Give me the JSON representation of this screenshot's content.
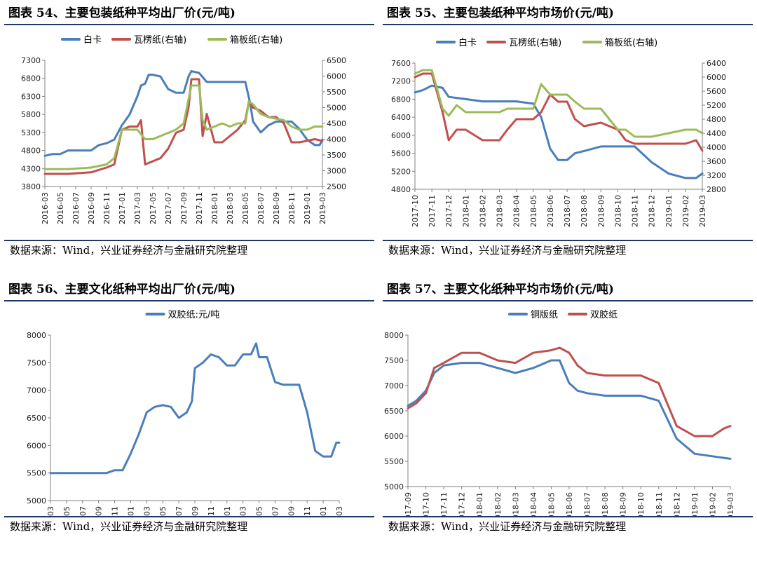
{
  "colors": {
    "blue": "#4a7ebb",
    "red": "#c0504d",
    "green": "#9bbb59",
    "rule": "#1f3864"
  },
  "chart_data": [
    {
      "type": "line",
      "panel_title": "图表 54、主要包装纸种平均出厂价(元/吨)",
      "source": "数据来源：Wind，兴业证券经济与金融研究院整理",
      "legend_position": "top",
      "grid": false,
      "ylim": [
        3800,
        7300
      ],
      "yticks": [
        3800,
        4300,
        4800,
        5300,
        5800,
        6300,
        6800,
        7300
      ],
      "y2lim": [
        2500,
        6500
      ],
      "y2ticks": [
        2500,
        3000,
        3500,
        4000,
        4500,
        5000,
        5500,
        6000,
        6500
      ],
      "xlim": [
        "2016-03",
        "2019-03"
      ],
      "xticks": [
        "2016-03",
        "2016-05",
        "2016-07",
        "2016-09",
        "2016-11",
        "2017-01",
        "2017-03",
        "2017-05",
        "2017-07",
        "2017-09",
        "2017-11",
        "2018-01",
        "2018-03",
        "2018-05",
        "2018-07",
        "2018-09",
        "2018-11",
        "2019-01",
        "2019-03"
      ],
      "series": [
        {
          "name": "白卡",
          "axis": "left",
          "color": "#4a7ebb",
          "x": [
            "2016-03",
            "2016-04",
            "2016-05",
            "2016-06",
            "2016-08",
            "2016-09",
            "2016-10",
            "2016-11",
            "2016-12",
            "2017-01",
            "2017-02",
            "2017-03",
            "2017-03-15",
            "2017-04",
            "2017-04-15",
            "2017-05",
            "2017-06",
            "2017-07",
            "2017-08",
            "2017-09",
            "2017-09-20",
            "2017-10",
            "2017-11",
            "2017-12",
            "2018-01",
            "2018-02",
            "2018-03",
            "2018-04",
            "2018-05",
            "2018-05-20",
            "2018-06",
            "2018-07",
            "2018-08",
            "2018-09",
            "2018-10",
            "2018-11",
            "2018-12",
            "2019-01",
            "2019-02",
            "2019-02-20",
            "2019-03"
          ],
          "values": [
            4650,
            4700,
            4700,
            4800,
            4800,
            4800,
            4950,
            5000,
            5100,
            5500,
            5800,
            6300,
            6600,
            6650,
            6900,
            6900,
            6850,
            6500,
            6400,
            6400,
            6850,
            7000,
            6950,
            6700,
            6700,
            6700,
            6700,
            6700,
            6700,
            6100,
            5600,
            5300,
            5500,
            5600,
            5600,
            5600,
            5400,
            5100,
            4950,
            4950,
            5100
          ]
        },
        {
          "name": "瓦楞纸(右轴)",
          "axis": "right",
          "color": "#c0504d",
          "x": [
            "2016-03",
            "2016-06",
            "2016-09",
            "2016-11",
            "2016-12",
            "2017-01",
            "2017-02",
            "2017-03",
            "2017-03-15",
            "2017-04",
            "2017-05",
            "2017-06",
            "2017-07",
            "2017-08",
            "2017-09",
            "2017-09-20",
            "2017-10",
            "2017-11",
            "2017-11-15",
            "2017-12",
            "2018-01",
            "2018-02",
            "2018-03",
            "2018-04",
            "2018-05",
            "2018-05-15",
            "2018-06",
            "2018-07",
            "2018-08",
            "2018-09",
            "2018-10",
            "2018-11",
            "2018-12",
            "2019-01",
            "2019-02",
            "2019-03"
          ],
          "values": [
            2900,
            2900,
            2950,
            3100,
            3200,
            4300,
            4400,
            4400,
            4600,
            3200,
            3300,
            3400,
            3700,
            4200,
            4300,
            5000,
            5900,
            5900,
            4100,
            4800,
            3900,
            3900,
            4100,
            4300,
            4600,
            5200,
            5000,
            4900,
            4700,
            4700,
            4500,
            3900,
            3900,
            3950,
            4000,
            3950
          ]
        },
        {
          "name": "箱板纸(右轴)",
          "axis": "right",
          "color": "#9bbb59",
          "x": [
            "2016-03",
            "2016-06",
            "2016-09",
            "2016-11",
            "2016-12",
            "2017-01",
            "2017-02",
            "2017-03",
            "2017-04",
            "2017-05",
            "2017-06",
            "2017-07",
            "2017-08",
            "2017-09",
            "2017-10",
            "2017-11",
            "2017-11-15",
            "2017-12",
            "2018-01",
            "2018-02",
            "2018-03",
            "2018-04",
            "2018-05",
            "2018-05-15",
            "2018-06",
            "2018-07",
            "2018-08",
            "2018-09",
            "2018-10",
            "2018-11",
            "2018-12",
            "2019-01",
            "2019-02",
            "2019-03"
          ],
          "values": [
            3050,
            3050,
            3100,
            3200,
            3400,
            4300,
            4300,
            4300,
            4000,
            4000,
            4100,
            4200,
            4300,
            4500,
            5700,
            5700,
            4600,
            4300,
            4400,
            4500,
            4400,
            4500,
            4500,
            5200,
            5100,
            4800,
            4700,
            4650,
            4600,
            4400,
            4300,
            4300,
            4400,
            4400
          ]
        }
      ]
    },
    {
      "type": "line",
      "panel_title": "图表 55、主要包装纸种平均市场价(元/吨)",
      "source": "数据来源：Wind，兴业证券经济与金融研究院整理",
      "legend_position": "top",
      "grid": false,
      "ylim": [
        4800,
        7600
      ],
      "yticks": [
        4800,
        5200,
        5600,
        6000,
        6400,
        6800,
        7200,
        7600
      ],
      "y2lim": [
        2800,
        6400
      ],
      "y2ticks": [
        2800,
        3200,
        3600,
        4000,
        4400,
        4800,
        5200,
        5600,
        6000,
        6400
      ],
      "xlim": [
        "2017-10",
        "2019-03"
      ],
      "xticks": [
        "2017-10",
        "2017-11",
        "2017-12",
        "2018-01",
        "2018-02",
        "2018-03",
        "2018-04",
        "2018-05",
        "2018-06",
        "2018-07",
        "2018-08",
        "2018-09",
        "2018-10",
        "2018-11",
        "2018-12",
        "2019-01",
        "2019-02",
        "2019-03"
      ],
      "series": [
        {
          "name": "白卡",
          "axis": "left",
          "color": "#4a7ebb",
          "x": [
            "2017-10",
            "2017-10-15",
            "2017-11",
            "2017-11-20",
            "2017-12",
            "2018-01",
            "2018-02",
            "2018-03",
            "2018-04",
            "2018-05",
            "2018-05-15",
            "2018-06",
            "2018-06-15",
            "2018-07",
            "2018-07-15",
            "2018-08",
            "2018-09",
            "2018-10",
            "2018-11",
            "2018-12",
            "2019-01",
            "2019-02",
            "2019-02-20",
            "2019-03"
          ],
          "values": [
            6950,
            7000,
            7100,
            7050,
            6850,
            6800,
            6750,
            6750,
            6750,
            6700,
            6400,
            5700,
            5450,
            5450,
            5600,
            5650,
            5750,
            5750,
            5750,
            5400,
            5150,
            5050,
            5050,
            5150
          ]
        },
        {
          "name": "瓦楞纸(右轴)",
          "axis": "right",
          "color": "#c0504d",
          "x": [
            "2017-10",
            "2017-10-15",
            "2017-11",
            "2017-11-20",
            "2017-12",
            "2017-12-15",
            "2018-01",
            "2018-02",
            "2018-03",
            "2018-03-15",
            "2018-04",
            "2018-05",
            "2018-05-15",
            "2018-06",
            "2018-06-15",
            "2018-07",
            "2018-07-15",
            "2018-08",
            "2018-09",
            "2018-10",
            "2018-10-15",
            "2018-11",
            "2018-12",
            "2019-01",
            "2019-02",
            "2019-02-20",
            "2019-03"
          ],
          "values": [
            6000,
            6100,
            6100,
            5000,
            4200,
            4500,
            4500,
            4200,
            4200,
            4500,
            4800,
            4800,
            5000,
            5500,
            5300,
            5300,
            4800,
            4600,
            4700,
            4500,
            4200,
            4100,
            4100,
            4100,
            4100,
            4200,
            3900
          ]
        },
        {
          "name": "箱板纸(右轴)",
          "axis": "right",
          "color": "#9bbb59",
          "x": [
            "2017-10",
            "2017-10-15",
            "2017-11",
            "2017-11-20",
            "2017-12",
            "2017-12-15",
            "2018-01",
            "2018-02",
            "2018-03",
            "2018-03-15",
            "2018-04",
            "2018-05",
            "2018-05-15",
            "2018-06",
            "2018-07",
            "2018-07-15",
            "2018-08",
            "2018-09",
            "2018-10",
            "2018-10-15",
            "2018-11",
            "2018-12",
            "2019-01",
            "2019-02",
            "2019-02-20",
            "2019-03"
          ],
          "values": [
            6100,
            6200,
            6200,
            5100,
            4900,
            5200,
            5000,
            5000,
            5000,
            5100,
            5100,
            5100,
            5800,
            5500,
            5500,
            5300,
            5100,
            5100,
            4500,
            4500,
            4300,
            4300,
            4400,
            4500,
            4500,
            4400
          ]
        }
      ]
    },
    {
      "type": "line",
      "panel_title": "图表 56、主要文化纸种平均出厂价(元/吨)",
      "source": "数据来源：Wind，兴业证券经济与金融研究院整理",
      "legend_position": "top",
      "grid": false,
      "ylim": [
        5000,
        8000
      ],
      "yticks": [
        5000,
        5500,
        6000,
        6500,
        7000,
        7500,
        8000
      ],
      "xlim": [
        "2016-03",
        "2019-03"
      ],
      "xticks": [
        "2016-03",
        "2016-05",
        "2016-07",
        "2016-09",
        "2016-11",
        "2017-01",
        "2017-03",
        "2017-05",
        "2017-07",
        "2017-09",
        "2017-11",
        "2018-01",
        "2018-03",
        "2018-05",
        "2018-07",
        "2018-09",
        "2018-11",
        "2019-01",
        "2019-03"
      ],
      "series": [
        {
          "name": "双胶纸:元/吨",
          "axis": "left",
          "color": "#4a7ebb",
          "x": [
            "2016-03",
            "2016-10",
            "2016-11",
            "2016-12",
            "2017-01",
            "2017-02",
            "2017-03",
            "2017-04",
            "2017-05",
            "2017-06",
            "2017-07",
            "2017-08",
            "2017-08-20",
            "2017-09",
            "2017-10",
            "2017-11",
            "2017-12",
            "2018-01",
            "2018-02",
            "2018-03",
            "2018-04",
            "2018-04-20",
            "2018-05",
            "2018-06",
            "2018-07",
            "2018-08",
            "2018-09",
            "2018-10",
            "2018-11",
            "2018-12",
            "2019-01",
            "2019-02",
            "2019-02-20",
            "2019-03"
          ],
          "values": [
            5500,
            5500,
            5550,
            5550,
            5850,
            6200,
            6600,
            6700,
            6730,
            6700,
            6500,
            6600,
            6800,
            7400,
            7500,
            7650,
            7600,
            7450,
            7450,
            7650,
            7650,
            7850,
            7600,
            7600,
            7150,
            7100,
            7100,
            7100,
            6600,
            5900,
            5800,
            5800,
            6050,
            6050
          ]
        }
      ]
    },
    {
      "type": "line",
      "panel_title": "图表 57、主要文化纸种平均市场价(元/吨)",
      "source": "数据来源：Wind，兴业证券经济与金融研究院整理",
      "legend_position": "top",
      "grid": false,
      "ylim": [
        5000,
        8000
      ],
      "yticks": [
        5000,
        5500,
        6000,
        6500,
        7000,
        7500,
        8000
      ],
      "xlim": [
        "2017-09",
        "2019-03"
      ],
      "xticks": [
        "2017-09",
        "2017-10",
        "2017-11",
        "2017-12",
        "2018-01",
        "2018-02",
        "2018-03",
        "2018-04",
        "2018-05",
        "2018-06",
        "2018-07",
        "2018-08",
        "2018-09",
        "2018-10",
        "2018-11",
        "2018-12",
        "2019-01",
        "2019-02",
        "2019-03"
      ],
      "series": [
        {
          "name": "铜版纸",
          "axis": "left",
          "color": "#4a7ebb",
          "x": [
            "2017-09",
            "2017-09-15",
            "2017-10",
            "2017-10-15",
            "2017-11",
            "2017-12",
            "2018-01",
            "2018-02",
            "2018-03",
            "2018-04",
            "2018-05",
            "2018-05-15",
            "2018-06",
            "2018-06-15",
            "2018-07",
            "2018-08",
            "2018-09",
            "2018-10",
            "2018-11",
            "2018-12",
            "2019-01",
            "2019-02",
            "2019-03"
          ],
          "values": [
            6600,
            6700,
            6900,
            7250,
            7400,
            7450,
            7450,
            7350,
            7250,
            7350,
            7500,
            7500,
            7050,
            6900,
            6850,
            6800,
            6800,
            6800,
            6700,
            5950,
            5650,
            5600,
            5550
          ]
        },
        {
          "name": "双胶纸",
          "axis": "left",
          "color": "#c0504d",
          "x": [
            "2017-09",
            "2017-09-15",
            "2017-10",
            "2017-10-15",
            "2017-11",
            "2017-12",
            "2018-01",
            "2018-02",
            "2018-03",
            "2018-04",
            "2018-05",
            "2018-05-15",
            "2018-06",
            "2018-06-15",
            "2018-07",
            "2018-08",
            "2018-09",
            "2018-10",
            "2018-11",
            "2018-12",
            "2019-01",
            "2019-02",
            "2019-02-20",
            "2019-03"
          ],
          "values": [
            6550,
            6650,
            6850,
            7350,
            7450,
            7650,
            7650,
            7500,
            7450,
            7650,
            7700,
            7750,
            7650,
            7400,
            7250,
            7200,
            7200,
            7200,
            7050,
            6200,
            6000,
            6000,
            6150,
            6200
          ]
        }
      ]
    }
  ]
}
